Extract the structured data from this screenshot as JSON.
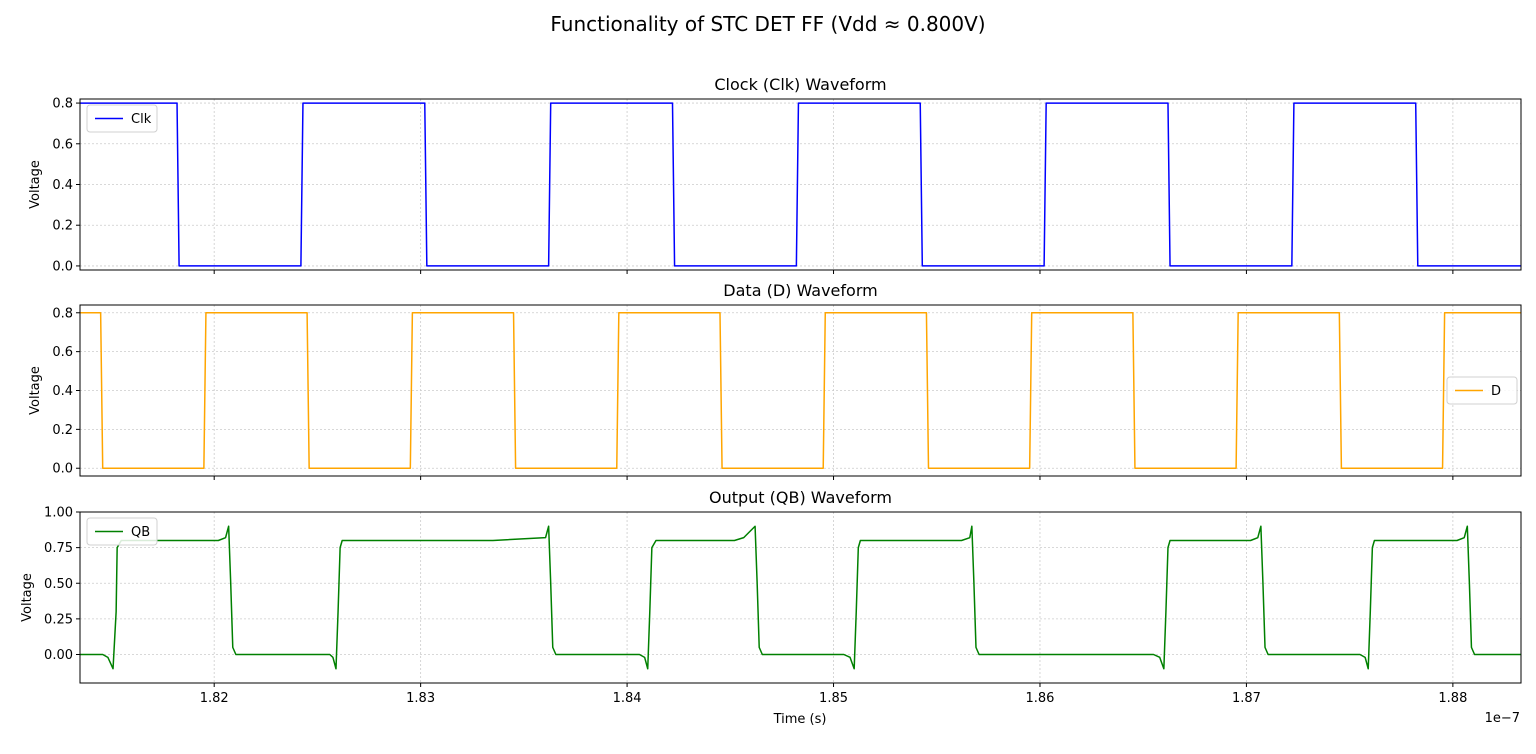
{
  "figure": {
    "suptitle": "Functionality of STC DET FF (Vdd ≈ 0.800V)",
    "xlabel": "Time (s)",
    "x_offset_label": "1e−7"
  },
  "chart_data": [
    {
      "type": "line",
      "title": "Clock (Clk) Waveform",
      "xlabel": "",
      "ylabel": "Voltage",
      "xlim": [
        1.8135,
        1.8833
      ],
      "ylim": [
        -0.02,
        0.82
      ],
      "x_unit_note": "x values in units of 1e-7 s",
      "yticks": [
        0.0,
        0.2,
        0.4,
        0.6,
        0.8
      ],
      "ytick_labels": [
        "0.0",
        "0.2",
        "0.4",
        "0.6",
        "0.8"
      ],
      "grid": true,
      "legend_loc": "upper left",
      "series": [
        {
          "name": "Clk",
          "color": "#0000ff",
          "x": [
            1.8135,
            1.8182,
            1.8183,
            1.8242,
            1.8243,
            1.8302,
            1.8303,
            1.8362,
            1.8363,
            1.8422,
            1.8423,
            1.8482,
            1.8483,
            1.8542,
            1.8543,
            1.8602,
            1.8603,
            1.8662,
            1.8663,
            1.8722,
            1.8723,
            1.8782,
            1.8783,
            1.8833
          ],
          "y": [
            0.8,
            0.8,
            0.0,
            0.0,
            0.8,
            0.8,
            0.0,
            0.0,
            0.8,
            0.8,
            0.0,
            0.0,
            0.8,
            0.8,
            0.0,
            0.0,
            0.8,
            0.8,
            0.0,
            0.0,
            0.8,
            0.8,
            0.0,
            0.0
          ]
        }
      ]
    },
    {
      "type": "line",
      "title": "Data (D) Waveform",
      "xlabel": "",
      "ylabel": "Voltage",
      "xlim": [
        1.8135,
        1.8833
      ],
      "ylim": [
        -0.04,
        0.84
      ],
      "x_unit_note": "x values in units of 1e-7 s",
      "yticks": [
        0.0,
        0.2,
        0.4,
        0.6,
        0.8
      ],
      "ytick_labels": [
        "0.0",
        "0.2",
        "0.4",
        "0.6",
        "0.8"
      ],
      "grid": true,
      "legend_loc": "center right",
      "series": [
        {
          "name": "D",
          "color": "#ffa500",
          "x": [
            1.8135,
            1.8145,
            1.8146,
            1.8195,
            1.8196,
            1.8245,
            1.8246,
            1.8295,
            1.8296,
            1.8345,
            1.8346,
            1.8395,
            1.8396,
            1.8445,
            1.8446,
            1.8495,
            1.8496,
            1.8545,
            1.8546,
            1.8595,
            1.8596,
            1.8645,
            1.8646,
            1.8695,
            1.8696,
            1.8745,
            1.8746,
            1.8795,
            1.8796,
            1.8833
          ],
          "y": [
            0.8,
            0.8,
            0.0,
            0.0,
            0.8,
            0.8,
            0.0,
            0.0,
            0.8,
            0.8,
            0.0,
            0.0,
            0.8,
            0.8,
            0.0,
            0.0,
            0.8,
            0.8,
            0.0,
            0.0,
            0.8,
            0.8,
            0.0,
            0.0,
            0.8,
            0.8,
            0.0,
            0.0,
            0.8,
            0.8
          ]
        }
      ]
    },
    {
      "type": "line",
      "title": "Output (QB) Waveform",
      "xlabel": "Time (s)",
      "ylabel": "Voltage",
      "xlim": [
        1.8135,
        1.8833
      ],
      "ylim": [
        -0.2,
        1.0
      ],
      "x_unit_note": "x values in units of 1e-7 s",
      "xticks": [
        1.82,
        1.83,
        1.84,
        1.85,
        1.86,
        1.87,
        1.88
      ],
      "xtick_labels": [
        "1.82",
        "1.83",
        "1.84",
        "1.85",
        "1.86",
        "1.87",
        "1.88"
      ],
      "yticks": [
        0.0,
        0.25,
        0.5,
        0.75,
        1.0
      ],
      "ytick_labels": [
        "0.00",
        "0.25",
        "0.50",
        "0.75",
        "1.00"
      ],
      "grid": true,
      "legend_loc": "upper left",
      "series": [
        {
          "name": "QB",
          "color": "#008000",
          "x": [
            1.8135,
            1.8146,
            1.81485,
            1.8151,
            1.81525,
            1.8153,
            1.8155,
            1.8158,
            1.8202,
            1.82055,
            1.8207,
            1.8208,
            1.8209,
            1.82105,
            1.8213,
            1.8256,
            1.82575,
            1.8259,
            1.826,
            1.8261,
            1.8262,
            1.82645,
            1.8335,
            1.83605,
            1.8362,
            1.8363,
            1.8364,
            1.83655,
            1.8368,
            1.8406,
            1.84085,
            1.841,
            1.8411,
            1.8412,
            1.8414,
            1.8416,
            1.8452,
            1.84565,
            1.8462,
            1.8463,
            1.8464,
            1.84655,
            1.8467,
            1.8505,
            1.8508,
            1.851,
            1.8511,
            1.8512,
            1.8513,
            1.8515,
            1.8562,
            1.8566,
            1.8567,
            1.8568,
            1.8569,
            1.85705,
            1.8572,
            1.8655,
            1.8658,
            1.866,
            1.8661,
            1.8662,
            1.8663,
            1.8666,
            1.8702,
            1.87055,
            1.8707,
            1.8708,
            1.8709,
            1.87105,
            1.8713,
            1.8755,
            1.87575,
            1.8759,
            1.876,
            1.8761,
            1.8762,
            1.87645,
            1.8802,
            1.88055,
            1.8807,
            1.8808,
            1.8809,
            1.88105,
            1.8813,
            1.8833
          ],
          "y": [
            0.0,
            0.0,
            -0.02,
            -0.1,
            0.3,
            0.75,
            0.8,
            0.8,
            0.8,
            0.82,
            0.9,
            0.5,
            0.05,
            0.0,
            0.0,
            0.0,
            -0.02,
            -0.1,
            0.3,
            0.75,
            0.8,
            0.8,
            0.8,
            0.82,
            0.9,
            0.5,
            0.05,
            0.0,
            0.0,
            0.0,
            -0.02,
            -0.1,
            0.3,
            0.75,
            0.8,
            0.8,
            0.8,
            0.82,
            0.9,
            0.5,
            0.05,
            0.0,
            0.0,
            0.0,
            -0.02,
            -0.1,
            0.3,
            0.75,
            0.8,
            0.8,
            0.8,
            0.82,
            0.9,
            0.5,
            0.05,
            0.0,
            0.0,
            0.0,
            -0.02,
            -0.1,
            0.3,
            0.75,
            0.8,
            0.8,
            0.8,
            0.82,
            0.9,
            0.5,
            0.05,
            0.0,
            0.0,
            0.0,
            -0.02,
            -0.1,
            0.3,
            0.75,
            0.8,
            0.8,
            0.8,
            0.82,
            0.9,
            0.5,
            0.05,
            0.0,
            0.0,
            0.0
          ]
        }
      ]
    }
  ]
}
